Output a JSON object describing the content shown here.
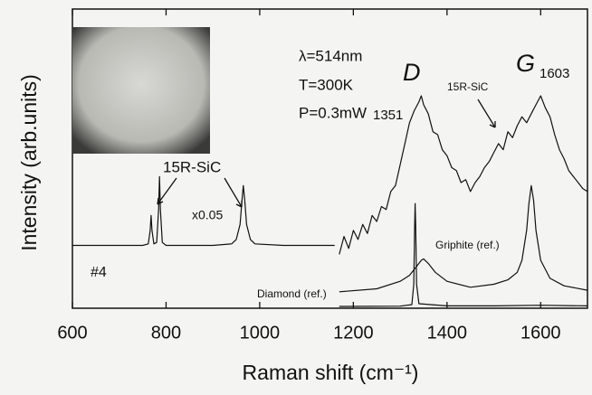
{
  "chart_data": {
    "type": "line",
    "xlabel": "Raman shift (cm⁻¹)",
    "ylabel": "Intensity (arb.units)",
    "xlim": [
      600,
      1700
    ],
    "xticks": [
      600,
      800,
      1000,
      1200,
      1400,
      1600
    ],
    "ylim": [
      0,
      100
    ],
    "annotations": [
      "λ=514nm",
      "T=300K",
      "P=0.3mW",
      "D",
      "1351",
      "G",
      "1603",
      "15R-SiC",
      "15R-SiC",
      "x0.05",
      "#4",
      "Griphite (ref.)",
      "Diamond (ref.)"
    ],
    "series": [
      {
        "color": "#111111",
        "x": [
          600,
          700,
          750,
          762,
          766,
          768,
          770,
          774,
          780,
          784,
          786,
          788,
          792,
          800,
          900,
          940,
          950,
          958,
          962,
          965,
          968,
          972,
          980,
          990,
          1050,
          1100,
          1160
        ],
        "values": [
          21,
          21,
          21,
          21.5,
          26,
          31,
          26,
          21.5,
          22,
          33,
          44,
          33,
          22,
          21,
          21,
          21.5,
          23,
          28,
          36,
          41,
          36,
          28,
          23,
          21.5,
          21,
          21,
          21
        ]
      },
      {
        "color": "#111111",
        "x": [
          1170,
          1180,
          1190,
          1200,
          1210,
          1220,
          1230,
          1240,
          1250,
          1260,
          1270,
          1280,
          1290,
          1300,
          1310,
          1320,
          1330,
          1340,
          1345,
          1350,
          1360,
          1370,
          1380,
          1390,
          1400,
          1410,
          1420,
          1430,
          1440,
          1450,
          1460,
          1470,
          1480,
          1490,
          1500,
          1510,
          1520,
          1530,
          1540,
          1550,
          1560,
          1570,
          1580,
          1590,
          1600,
          1610,
          1620,
          1630,
          1640,
          1650,
          1660,
          1670,
          1680,
          1690,
          1700
        ],
        "values": [
          18,
          24,
          20,
          26,
          23,
          28,
          25,
          31,
          29,
          34,
          33,
          39,
          41,
          48,
          55,
          62,
          66,
          69,
          71,
          68,
          65,
          59,
          58,
          53,
          51,
          47,
          46,
          42,
          43,
          39,
          42,
          44,
          47,
          49,
          52,
          55,
          53,
          59,
          57,
          61,
          64,
          62,
          65,
          68,
          71,
          67,
          64,
          58,
          53,
          50,
          46,
          44,
          42,
          40,
          39
        ]
      },
      {
        "color": "#111111",
        "x": [
          1170,
          1250,
          1300,
          1320,
          1335,
          1345,
          1350,
          1360,
          1375,
          1400,
          1450,
          1500,
          1530,
          1550,
          1560,
          1570,
          1575,
          1580,
          1585,
          1590,
          1600,
          1620,
          1650,
          1700
        ],
        "values": [
          5.5,
          6.5,
          9,
          11,
          14,
          16,
          16.5,
          15,
          12,
          9,
          7,
          8,
          9.5,
          12,
          16,
          26,
          35,
          41,
          36,
          26,
          16,
          10,
          7.5,
          6
        ]
      },
      {
        "color": "#111111",
        "x": [
          1170,
          1300,
          1325,
          1329,
          1331,
          1332,
          1333,
          1335,
          1340,
          1400,
          1500,
          1600,
          1700
        ],
        "values": [
          0.6,
          0.7,
          1.2,
          8,
          28,
          35,
          28,
          8,
          1.5,
          0.8,
          0.8,
          1,
          0.8
        ]
      }
    ]
  }
}
